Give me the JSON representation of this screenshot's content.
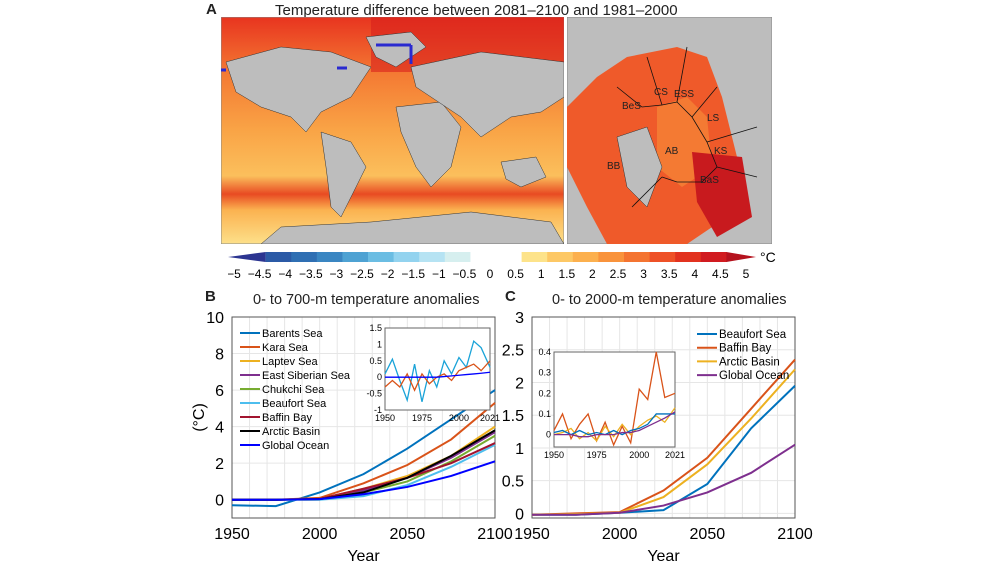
{
  "panel_a": {
    "label": "A",
    "title": "Temperature difference between 2081–2100 and 1981–2000",
    "regions": [
      "CS",
      "ESS",
      "BeS",
      "LS",
      "AB",
      "KS",
      "BB",
      "BaS"
    ],
    "colorbar": {
      "unit": "°C",
      "ticks": [
        "−5",
        "−4.5",
        "−4",
        "−3.5",
        "−3",
        "−2.5",
        "−2",
        "−1.5",
        "−1",
        "−0.5",
        "0",
        "0.5",
        "1",
        "1.5",
        "2",
        "2.5",
        "3",
        "3.5",
        "4",
        "4.5",
        "5"
      ],
      "colors": [
        "#2c3591",
        "#2b5aa6",
        "#2f6fb3",
        "#3a86c2",
        "#4ea2d3",
        "#6bbde3",
        "#93d3ef",
        "#b6e3f3",
        "#d6efef",
        "#ffffff",
        "#ffffff",
        "#fde38a",
        "#fdc865",
        "#fcb04e",
        "#f9933c",
        "#f47431",
        "#ee5127",
        "#e2321f",
        "#d11b20",
        "#b5121e"
      ]
    },
    "colors": {
      "land": "#bdbdbd",
      "ocean_warm": "#f7a343",
      "ocean_hot": "#e8281c"
    }
  },
  "chart_data": [
    {
      "type": "line",
      "label": "B",
      "title": "0- to 700-m temperature anomalies",
      "xlabel": "Year",
      "ylabel": "(°C)",
      "xlim": [
        1950,
        2100
      ],
      "ylim": [
        -1,
        10
      ],
      "xticks": [
        1950,
        2000,
        2050,
        2100
      ],
      "yticks": [
        0,
        2,
        4,
        6,
        8,
        10
      ],
      "grid": true,
      "legend": "top-left",
      "x": [
        1950,
        1975,
        2000,
        2025,
        2050,
        2075,
        2100
      ],
      "series": [
        {
          "name": "Barents Sea",
          "color": "#0072BD",
          "values": [
            -0.3,
            -0.35,
            0.4,
            1.4,
            2.8,
            4.4,
            6.0
          ]
        },
        {
          "name": "Kara Sea",
          "color": "#D95319",
          "values": [
            0,
            0,
            0.1,
            0.9,
            1.9,
            3.3,
            5.3
          ]
        },
        {
          "name": "Laptev Sea",
          "color": "#EDB120",
          "values": [
            0,
            0,
            0.05,
            0.6,
            1.3,
            2.4,
            4.0
          ]
        },
        {
          "name": "East Siberian Sea",
          "color": "#7E2F8E",
          "values": [
            0,
            0,
            0.05,
            0.5,
            1.2,
            2.3,
            3.7
          ]
        },
        {
          "name": "Chukchi Sea",
          "color": "#77AC30",
          "values": [
            0,
            0,
            0.05,
            0.4,
            1.0,
            2.1,
            3.5
          ]
        },
        {
          "name": "Beaufort Sea",
          "color": "#4DBEEE",
          "values": [
            0,
            0,
            0,
            0.2,
            0.8,
            1.8,
            3.0
          ]
        },
        {
          "name": "Baffin Bay",
          "color": "#A2142F",
          "values": [
            0,
            0,
            0.05,
            0.6,
            1.2,
            2.0,
            3.1
          ]
        },
        {
          "name": "Arctic Basin",
          "color": "#000000",
          "values": [
            0,
            0,
            0.03,
            0.4,
            1.2,
            2.4,
            3.8
          ]
        },
        {
          "name": "Global Ocean",
          "color": "#0000FF",
          "values": [
            0,
            0,
            0.03,
            0.3,
            0.7,
            1.3,
            2.1
          ]
        }
      ],
      "inset": {
        "xlim": [
          1950,
          2021
        ],
        "ylim": [
          -1,
          1.5
        ],
        "xticks": [
          1950,
          1975,
          2000,
          2021
        ],
        "yticks": [
          -1,
          -0.5,
          0,
          0.5,
          1,
          1.5
        ],
        "x": [
          1950,
          1955,
          1960,
          1965,
          1970,
          1975,
          1980,
          1985,
          1990,
          1995,
          2000,
          2005,
          2010,
          2015,
          2021
        ],
        "series": [
          {
            "name": "Barents Sea",
            "color": "#1aa3d8",
            "values": [
              0.1,
              0.55,
              -0.1,
              -0.7,
              0.4,
              -0.75,
              0.2,
              -0.3,
              0.5,
              0.1,
              0.6,
              0.3,
              1.1,
              0.9,
              0.3
            ]
          },
          {
            "name": "Kara Sea",
            "color": "#D95319",
            "values": [
              -0.3,
              -0.1,
              -0.3,
              0.1,
              -0.4,
              0.1,
              -0.2,
              0,
              0.1,
              -0.1,
              0.2,
              0.3,
              0.4,
              0.2,
              0.5
            ]
          },
          {
            "name": "Global Ocean",
            "color": "#0000FF",
            "values": [
              0,
              0,
              0,
              0,
              0,
              0,
              0,
              0,
              0.02,
              0.04,
              0.06,
              0.08,
              0.1,
              0.12,
              0.15
            ]
          }
        ]
      }
    },
    {
      "type": "line",
      "label": "C",
      "title": "0- to 2000-m temperature anomalies",
      "xlabel": "Year",
      "ylabel": "",
      "xlim": [
        1950,
        2100
      ],
      "ylim": [
        -0.07,
        3
      ],
      "xticks": [
        1950,
        2000,
        2050,
        2100
      ],
      "yticks": [
        0,
        0.5,
        1,
        1.5,
        2,
        2.5,
        3
      ],
      "grid": true,
      "legend": "top-right",
      "x": [
        1950,
        1975,
        2000,
        2025,
        2050,
        2075,
        2100
      ],
      "series": [
        {
          "name": "Beaufort Sea",
          "color": "#0072BD",
          "values": [
            -0.02,
            -0.02,
            0.01,
            0.05,
            0.45,
            1.3,
            1.95
          ]
        },
        {
          "name": "Baffin Bay",
          "color": "#D95319",
          "values": [
            -0.02,
            0,
            0.02,
            0.35,
            0.85,
            1.6,
            2.35
          ]
        },
        {
          "name": "Arctic Basin",
          "color": "#EDB120",
          "values": [
            -0.02,
            -0.01,
            0.01,
            0.25,
            0.75,
            1.45,
            2.2
          ]
        },
        {
          "name": "Global Ocean",
          "color": "#7E2F8E",
          "values": [
            -0.02,
            -0.02,
            0.01,
            0.12,
            0.32,
            0.62,
            1.05
          ]
        }
      ],
      "inset": {
        "xlim": [
          1950,
          2021
        ],
        "ylim": [
          -0.06,
          0.4
        ],
        "xticks": [
          1950,
          1975,
          2000,
          2021
        ],
        "yticks": [
          0,
          0.1,
          0.2,
          0.3,
          0.4
        ],
        "x": [
          1950,
          1955,
          1960,
          1965,
          1970,
          1975,
          1980,
          1985,
          1990,
          1995,
          2000,
          2005,
          2010,
          2015,
          2021
        ],
        "series": [
          {
            "name": "Baffin Bay",
            "color": "#D95319",
            "values": [
              0.02,
              0.1,
              -0.02,
              0.05,
              0.1,
              -0.03,
              0.06,
              -0.05,
              0.04,
              -0.04,
              0.22,
              0.17,
              0.4,
              0.18,
              0.2
            ]
          },
          {
            "name": "Arctic Basin",
            "color": "#EDB120",
            "values": [
              0,
              0.01,
              0.03,
              -0.02,
              0.01,
              -0.03,
              0.04,
              -0.01,
              0.05,
              0.0,
              0.04,
              0.07,
              0.09,
              0.06,
              0.13
            ]
          },
          {
            "name": "Beaufort Sea",
            "color": "#0072BD",
            "values": [
              0.01,
              0.02,
              0,
              0.02,
              0,
              0.01,
              0,
              0.02,
              0.0,
              0.02,
              0.03,
              0.05,
              0.1,
              0.1,
              0.1
            ]
          },
          {
            "name": "Global Ocean",
            "color": "#7E2F8E",
            "values": [
              0,
              0,
              0,
              -0.01,
              -0.01,
              0,
              0,
              0,
              0.01,
              0.01,
              0.02,
              0.04,
              0.06,
              0.08,
              0.11
            ]
          }
        ]
      }
    }
  ]
}
